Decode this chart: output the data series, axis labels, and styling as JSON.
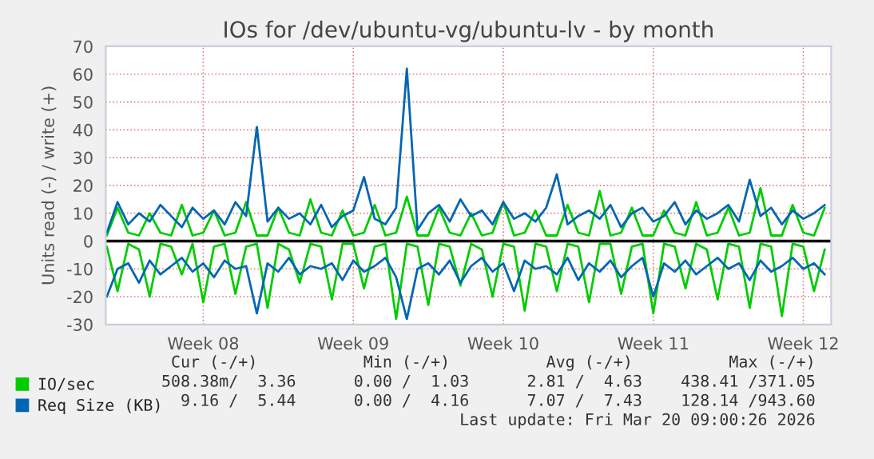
{
  "chart_data": {
    "type": "line",
    "title": "IOs for /dev/ubuntu-vg/ubuntu-lv - by month",
    "ylabel": "Units read (-) / write (+)",
    "categories": [
      null,
      null,
      null,
      null,
      null,
      null,
      null,
      null,
      null,
      "Week 08",
      null,
      null,
      null,
      null,
      null,
      null,
      null,
      null,
      null,
      null,
      null,
      null,
      null,
      "Week 09",
      null,
      null,
      null,
      null,
      null,
      null,
      null,
      null,
      null,
      null,
      null,
      null,
      null,
      "Week 10",
      null,
      null,
      null,
      null,
      null,
      null,
      null,
      null,
      null,
      null,
      null,
      null,
      null,
      "Week 11",
      null,
      null,
      null,
      null,
      null,
      null,
      null,
      null,
      null,
      null,
      null,
      null,
      null,
      "Week 12",
      null,
      null
    ],
    "series": [
      {
        "name": "IO/sec",
        "color": "#00cc00",
        "values": [
          2,
          12,
          3,
          2,
          10,
          3,
          2,
          13,
          2,
          3,
          11,
          2,
          3,
          14,
          2,
          2,
          12,
          3,
          2,
          15,
          3,
          2,
          11,
          2,
          3,
          13,
          2,
          3,
          16,
          2,
          2,
          12,
          3,
          2,
          10,
          2,
          3,
          14,
          2,
          3,
          11,
          2,
          2,
          13,
          3,
          2,
          18,
          2,
          3,
          12,
          2,
          2,
          11,
          3,
          2,
          14,
          2,
          3,
          12,
          2,
          3,
          19,
          2,
          2,
          13,
          3,
          2,
          12
        ]
      },
      {
        "color": "#00cc00",
        "values": [
          -2,
          -18,
          -1,
          -3,
          -20,
          -1,
          -2,
          -12,
          -1,
          -22,
          -2,
          -1,
          -19,
          -2,
          -1,
          -24,
          -1,
          -3,
          -15,
          -1,
          -2,
          -21,
          -1,
          -1,
          -17,
          -2,
          -1,
          -28,
          -1,
          -2,
          -23,
          -1,
          -2,
          -16,
          -1,
          -3,
          -20,
          -1,
          -2,
          -25,
          -1,
          -2,
          -18,
          -1,
          -2,
          -22,
          -1,
          -1,
          -19,
          -2,
          -1,
          -26,
          -1,
          -2,
          -17,
          -1,
          -3,
          -21,
          -1,
          -2,
          -24,
          -1,
          -2,
          -27,
          -1,
          -2,
          -18,
          -3
        ]
      },
      {
        "name": "Req Size (KB)",
        "color": "#0066b3",
        "values": [
          3,
          14,
          6,
          10,
          7,
          13,
          9,
          5,
          12,
          8,
          11,
          6,
          14,
          9,
          41,
          7,
          12,
          8,
          10,
          6,
          13,
          5,
          9,
          11,
          23,
          8,
          6,
          12,
          62,
          4,
          10,
          13,
          7,
          15,
          9,
          11,
          6,
          14,
          8,
          10,
          7,
          12,
          24,
          6,
          9,
          11,
          8,
          13,
          5,
          10,
          12,
          7,
          9,
          14,
          6,
          11,
          8,
          10,
          13,
          7,
          22,
          9,
          12,
          6,
          11,
          8,
          10,
          13
        ]
      },
      {
        "color": "#0066b3",
        "values": [
          -20,
          -10,
          -8,
          -15,
          -7,
          -12,
          -9,
          -6,
          -11,
          -8,
          -13,
          -7,
          -10,
          -9,
          -26,
          -8,
          -11,
          -6,
          -12,
          -9,
          -10,
          -8,
          -14,
          -7,
          -11,
          -9,
          -6,
          -13,
          -28,
          -10,
          -8,
          -12,
          -7,
          -15,
          -9,
          -6,
          -11,
          -8,
          -18,
          -7,
          -10,
          -9,
          -12,
          -6,
          -14,
          -8,
          -11,
          -7,
          -13,
          -9,
          -6,
          -20,
          -8,
          -11,
          -7,
          -12,
          -9,
          -6,
          -10,
          -8,
          -14,
          -7,
          -11,
          -9,
          -6,
          -10,
          -8,
          -12
        ]
      }
    ],
    "ylim": [
      -30,
      70
    ],
    "yticks": [
      -30,
      -20,
      -10,
      0,
      10,
      20,
      30,
      40,
      50,
      60,
      70
    ],
    "ref_lines": [
      {
        "axis": "y",
        "value": 0,
        "color": "#000000"
      }
    ],
    "grid": true,
    "legend": "bottom left",
    "marker": "none",
    "line_style": "solid",
    "annotations": [
      "Cur (-/+)           Min (-/+)          Avg (-/+)          Max (-/+)",
      "508.38m/  3.36      0.00 /  1.03      2.81 /  4.63    438.41 /371.05",
      "9.16 /  5.44      0.00 /  4.16      7.07 /  7.43    128.14 /943.60",
      "Last update: Fri Mar 20 09:00:26 2026"
    ]
  }
}
